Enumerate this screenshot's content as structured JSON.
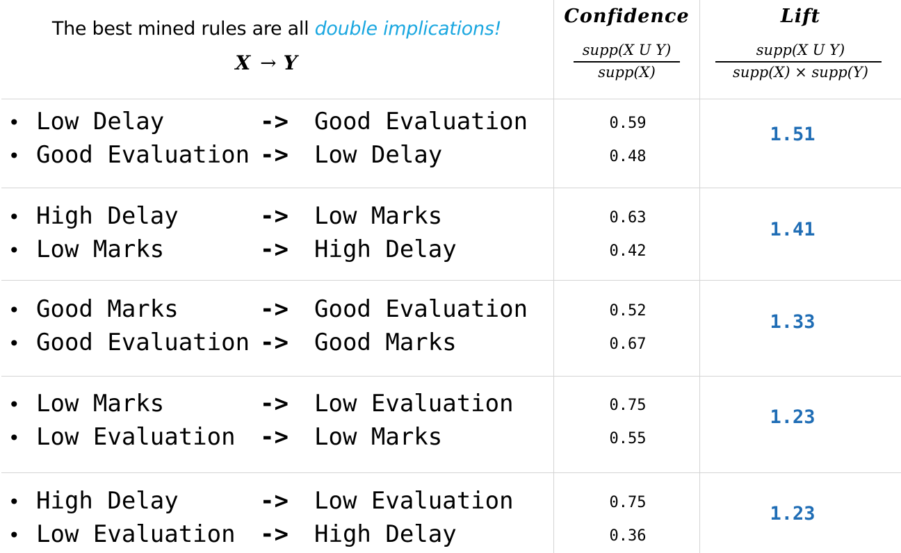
{
  "header": {
    "subtitle_main": "The best mined rules are all ",
    "subtitle_accent": "double implications!",
    "rule_x": "X",
    "rule_arrow": "→",
    "rule_y": "Y",
    "confidence_title": "Confidence",
    "confidence_numerator": "supp(X U Y)",
    "confidence_denominator": "supp(X)",
    "lift_title": "Lift",
    "lift_numerator": "supp(X U Y)",
    "lift_denominator": "supp(X) × supp(Y)"
  },
  "colors": {
    "accent": "#1aa7e0",
    "lift": "#1f6db5",
    "grid": "#d4d4d4"
  },
  "bullet": "•",
  "arrow": "->",
  "rules": [
    {
      "lines": [
        {
          "x": "Low Delay",
          "y": "Good Evaluation",
          "confidence": "0.59"
        },
        {
          "x": "Good Evaluation",
          "y": "Low Delay",
          "confidence": "0.48"
        }
      ],
      "lift": "1.51"
    },
    {
      "lines": [
        {
          "x": "High Delay",
          "y": "Low Marks",
          "confidence": "0.63"
        },
        {
          "x": "Low Marks",
          "y": "High Delay",
          "confidence": "0.42"
        }
      ],
      "lift": "1.41"
    },
    {
      "lines": [
        {
          "x": "Good Marks",
          "y": "Good Evaluation",
          "confidence": "0.52"
        },
        {
          "x": "Good Evaluation",
          "y": "Good Marks",
          "confidence": "0.67"
        }
      ],
      "lift": "1.33"
    },
    {
      "lines": [
        {
          "x": "Low Marks",
          "y": "Low Evaluation",
          "confidence": "0.75"
        },
        {
          "x": "Low Evaluation",
          "y": "Low Marks",
          "confidence": "0.55"
        }
      ],
      "lift": "1.23"
    },
    {
      "lines": [
        {
          "x": "High Delay",
          "y": "Low Evaluation",
          "confidence": "0.75"
        },
        {
          "x": "Low Evaluation",
          "y": "High Delay",
          "confidence": "0.36"
        }
      ],
      "lift": "1.23"
    }
  ]
}
